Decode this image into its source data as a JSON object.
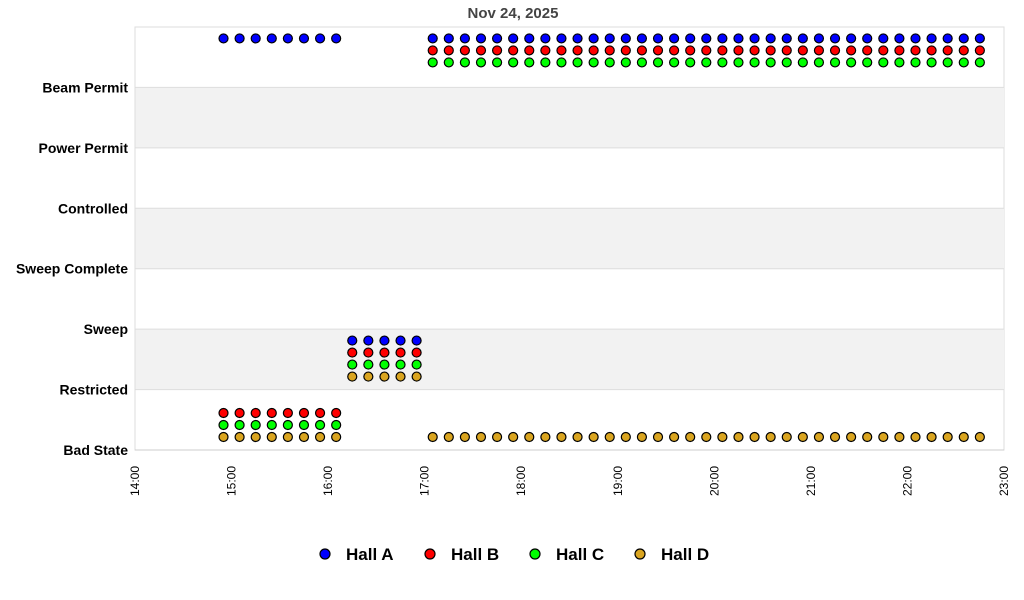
{
  "chart_data": {
    "type": "scatter",
    "title": "Nov 24, 2025",
    "xlabel": "",
    "ylabel": "",
    "x_ticks": [
      "14:00",
      "15:00",
      "16:00",
      "17:00",
      "18:00",
      "19:00",
      "20:00",
      "21:00",
      "22:00",
      "23:00"
    ],
    "xlim": [
      "14:00",
      "23:00"
    ],
    "y_categories": [
      "Bad State",
      "Restricted",
      "Sweep",
      "Sweep Complete",
      "Controlled",
      "Power Permit",
      "Beam Permit"
    ],
    "grid": true,
    "legend_position": "bottom",
    "x": [
      "14:55",
      "15:05",
      "15:15",
      "15:25",
      "15:35",
      "15:45",
      "15:55",
      "16:05",
      "16:15",
      "16:25",
      "16:35",
      "16:45",
      "16:55",
      "17:05",
      "17:15",
      "17:25",
      "17:35",
      "17:45",
      "17:55",
      "18:05",
      "18:15",
      "18:25",
      "18:35",
      "18:45",
      "18:55",
      "19:05",
      "19:15",
      "19:25",
      "19:35",
      "19:45",
      "19:55",
      "20:05",
      "20:15",
      "20:25",
      "20:35",
      "20:45",
      "20:55",
      "21:05",
      "21:15",
      "21:25",
      "21:35",
      "21:45",
      "21:55",
      "22:05",
      "22:15",
      "22:25",
      "22:35",
      "22:45"
    ],
    "series": [
      {
        "name": "Hall A",
        "color": "#0000ff",
        "values": [
          "Beam Permit",
          "Beam Permit",
          "Beam Permit",
          "Beam Permit",
          "Beam Permit",
          "Beam Permit",
          "Beam Permit",
          "Beam Permit",
          "Restricted",
          "Restricted",
          "Restricted",
          "Restricted",
          "Restricted",
          "Beam Permit",
          "Beam Permit",
          "Beam Permit",
          "Beam Permit",
          "Beam Permit",
          "Beam Permit",
          "Beam Permit",
          "Beam Permit",
          "Beam Permit",
          "Beam Permit",
          "Beam Permit",
          "Beam Permit",
          "Beam Permit",
          "Beam Permit",
          "Beam Permit",
          "Beam Permit",
          "Beam Permit",
          "Beam Permit",
          "Beam Permit",
          "Beam Permit",
          "Beam Permit",
          "Beam Permit",
          "Beam Permit",
          "Beam Permit",
          "Beam Permit",
          "Beam Permit",
          "Beam Permit",
          "Beam Permit",
          "Beam Permit",
          "Beam Permit",
          "Beam Permit",
          "Beam Permit",
          "Beam Permit",
          "Beam Permit",
          "Beam Permit"
        ]
      },
      {
        "name": "Hall B",
        "color": "#ff0000",
        "values": [
          "Bad State",
          "Bad State",
          "Bad State",
          "Bad State",
          "Bad State",
          "Bad State",
          "Bad State",
          "Bad State",
          "Restricted",
          "Restricted",
          "Restricted",
          "Restricted",
          "Restricted",
          "Beam Permit",
          "Beam Permit",
          "Beam Permit",
          "Beam Permit",
          "Beam Permit",
          "Beam Permit",
          "Beam Permit",
          "Beam Permit",
          "Beam Permit",
          "Beam Permit",
          "Beam Permit",
          "Beam Permit",
          "Beam Permit",
          "Beam Permit",
          "Beam Permit",
          "Beam Permit",
          "Beam Permit",
          "Beam Permit",
          "Beam Permit",
          "Beam Permit",
          "Beam Permit",
          "Beam Permit",
          "Beam Permit",
          "Beam Permit",
          "Beam Permit",
          "Beam Permit",
          "Beam Permit",
          "Beam Permit",
          "Beam Permit",
          "Beam Permit",
          "Beam Permit",
          "Beam Permit",
          "Beam Permit",
          "Beam Permit",
          "Beam Permit"
        ]
      },
      {
        "name": "Hall C",
        "color": "#00ff00",
        "values": [
          "Bad State",
          "Bad State",
          "Bad State",
          "Bad State",
          "Bad State",
          "Bad State",
          "Bad State",
          "Bad State",
          "Restricted",
          "Restricted",
          "Restricted",
          "Restricted",
          "Restricted",
          "Beam Permit",
          "Beam Permit",
          "Beam Permit",
          "Beam Permit",
          "Beam Permit",
          "Beam Permit",
          "Beam Permit",
          "Beam Permit",
          "Beam Permit",
          "Beam Permit",
          "Beam Permit",
          "Beam Permit",
          "Beam Permit",
          "Beam Permit",
          "Beam Permit",
          "Beam Permit",
          "Beam Permit",
          "Beam Permit",
          "Beam Permit",
          "Beam Permit",
          "Beam Permit",
          "Beam Permit",
          "Beam Permit",
          "Beam Permit",
          "Beam Permit",
          "Beam Permit",
          "Beam Permit",
          "Beam Permit",
          "Beam Permit",
          "Beam Permit",
          "Beam Permit",
          "Beam Permit",
          "Beam Permit",
          "Beam Permit",
          "Beam Permit"
        ]
      },
      {
        "name": "Hall D",
        "color": "#daa520",
        "values": [
          "Bad State",
          "Bad State",
          "Bad State",
          "Bad State",
          "Bad State",
          "Bad State",
          "Bad State",
          "Bad State",
          "Restricted",
          "Restricted",
          "Restricted",
          "Restricted",
          "Restricted",
          "Bad State",
          "Bad State",
          "Bad State",
          "Bad State",
          "Bad State",
          "Bad State",
          "Bad State",
          "Bad State",
          "Bad State",
          "Bad State",
          "Bad State",
          "Bad State",
          "Bad State",
          "Bad State",
          "Bad State",
          "Bad State",
          "Bad State",
          "Bad State",
          "Bad State",
          "Bad State",
          "Bad State",
          "Bad State",
          "Bad State",
          "Bad State",
          "Bad State",
          "Bad State",
          "Bad State",
          "Bad State",
          "Bad State",
          "Bad State",
          "Bad State",
          "Bad State",
          "Bad State",
          "Bad State",
          "Bad State"
        ]
      }
    ]
  }
}
